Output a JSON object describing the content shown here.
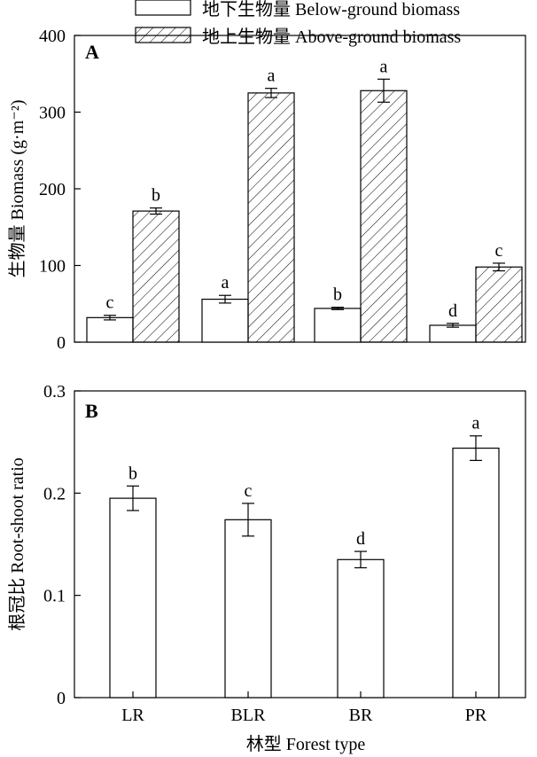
{
  "chart_data": [
    {
      "type": "bar",
      "panel_label": "A",
      "ylabel": "生物量 Biomass (g·m⁻²)",
      "ylim": [
        0,
        400
      ],
      "yticks": [
        "0",
        "100",
        "200",
        "300",
        "400"
      ],
      "categories": [
        "LR",
        "BLR",
        "BR",
        "PR"
      ],
      "legend": {
        "position": "top"
      },
      "series": [
        {
          "name": "地下生物量 Below-ground biomass",
          "pattern": "open",
          "values": [
            32,
            56,
            44,
            22
          ],
          "errors": [
            3,
            5,
            1.5,
            2.5
          ],
          "letters": [
            "c",
            "a",
            "b",
            "d"
          ]
        },
        {
          "name": "地上生物量 Above-ground biomass",
          "pattern": "hatched",
          "values": [
            171,
            325,
            328,
            98
          ],
          "errors": [
            4,
            6,
            15,
            5
          ],
          "letters": [
            "b",
            "a",
            "a",
            "c"
          ]
        }
      ]
    },
    {
      "type": "bar",
      "panel_label": "B",
      "ylabel": "根冠比 Root-shoot ratio",
      "xlabel": "林型 Forest type",
      "ylim": [
        0,
        0.3
      ],
      "yticks": [
        "0",
        "0.1",
        "0.2",
        "0.3"
      ],
      "categories": [
        "LR",
        "BLR",
        "BR",
        "PR"
      ],
      "values": [
        0.195,
        0.174,
        0.135,
        0.244
      ],
      "errors": [
        0.012,
        0.016,
        0.008,
        0.012
      ],
      "letters": [
        "b",
        "c",
        "d",
        "a"
      ]
    }
  ]
}
